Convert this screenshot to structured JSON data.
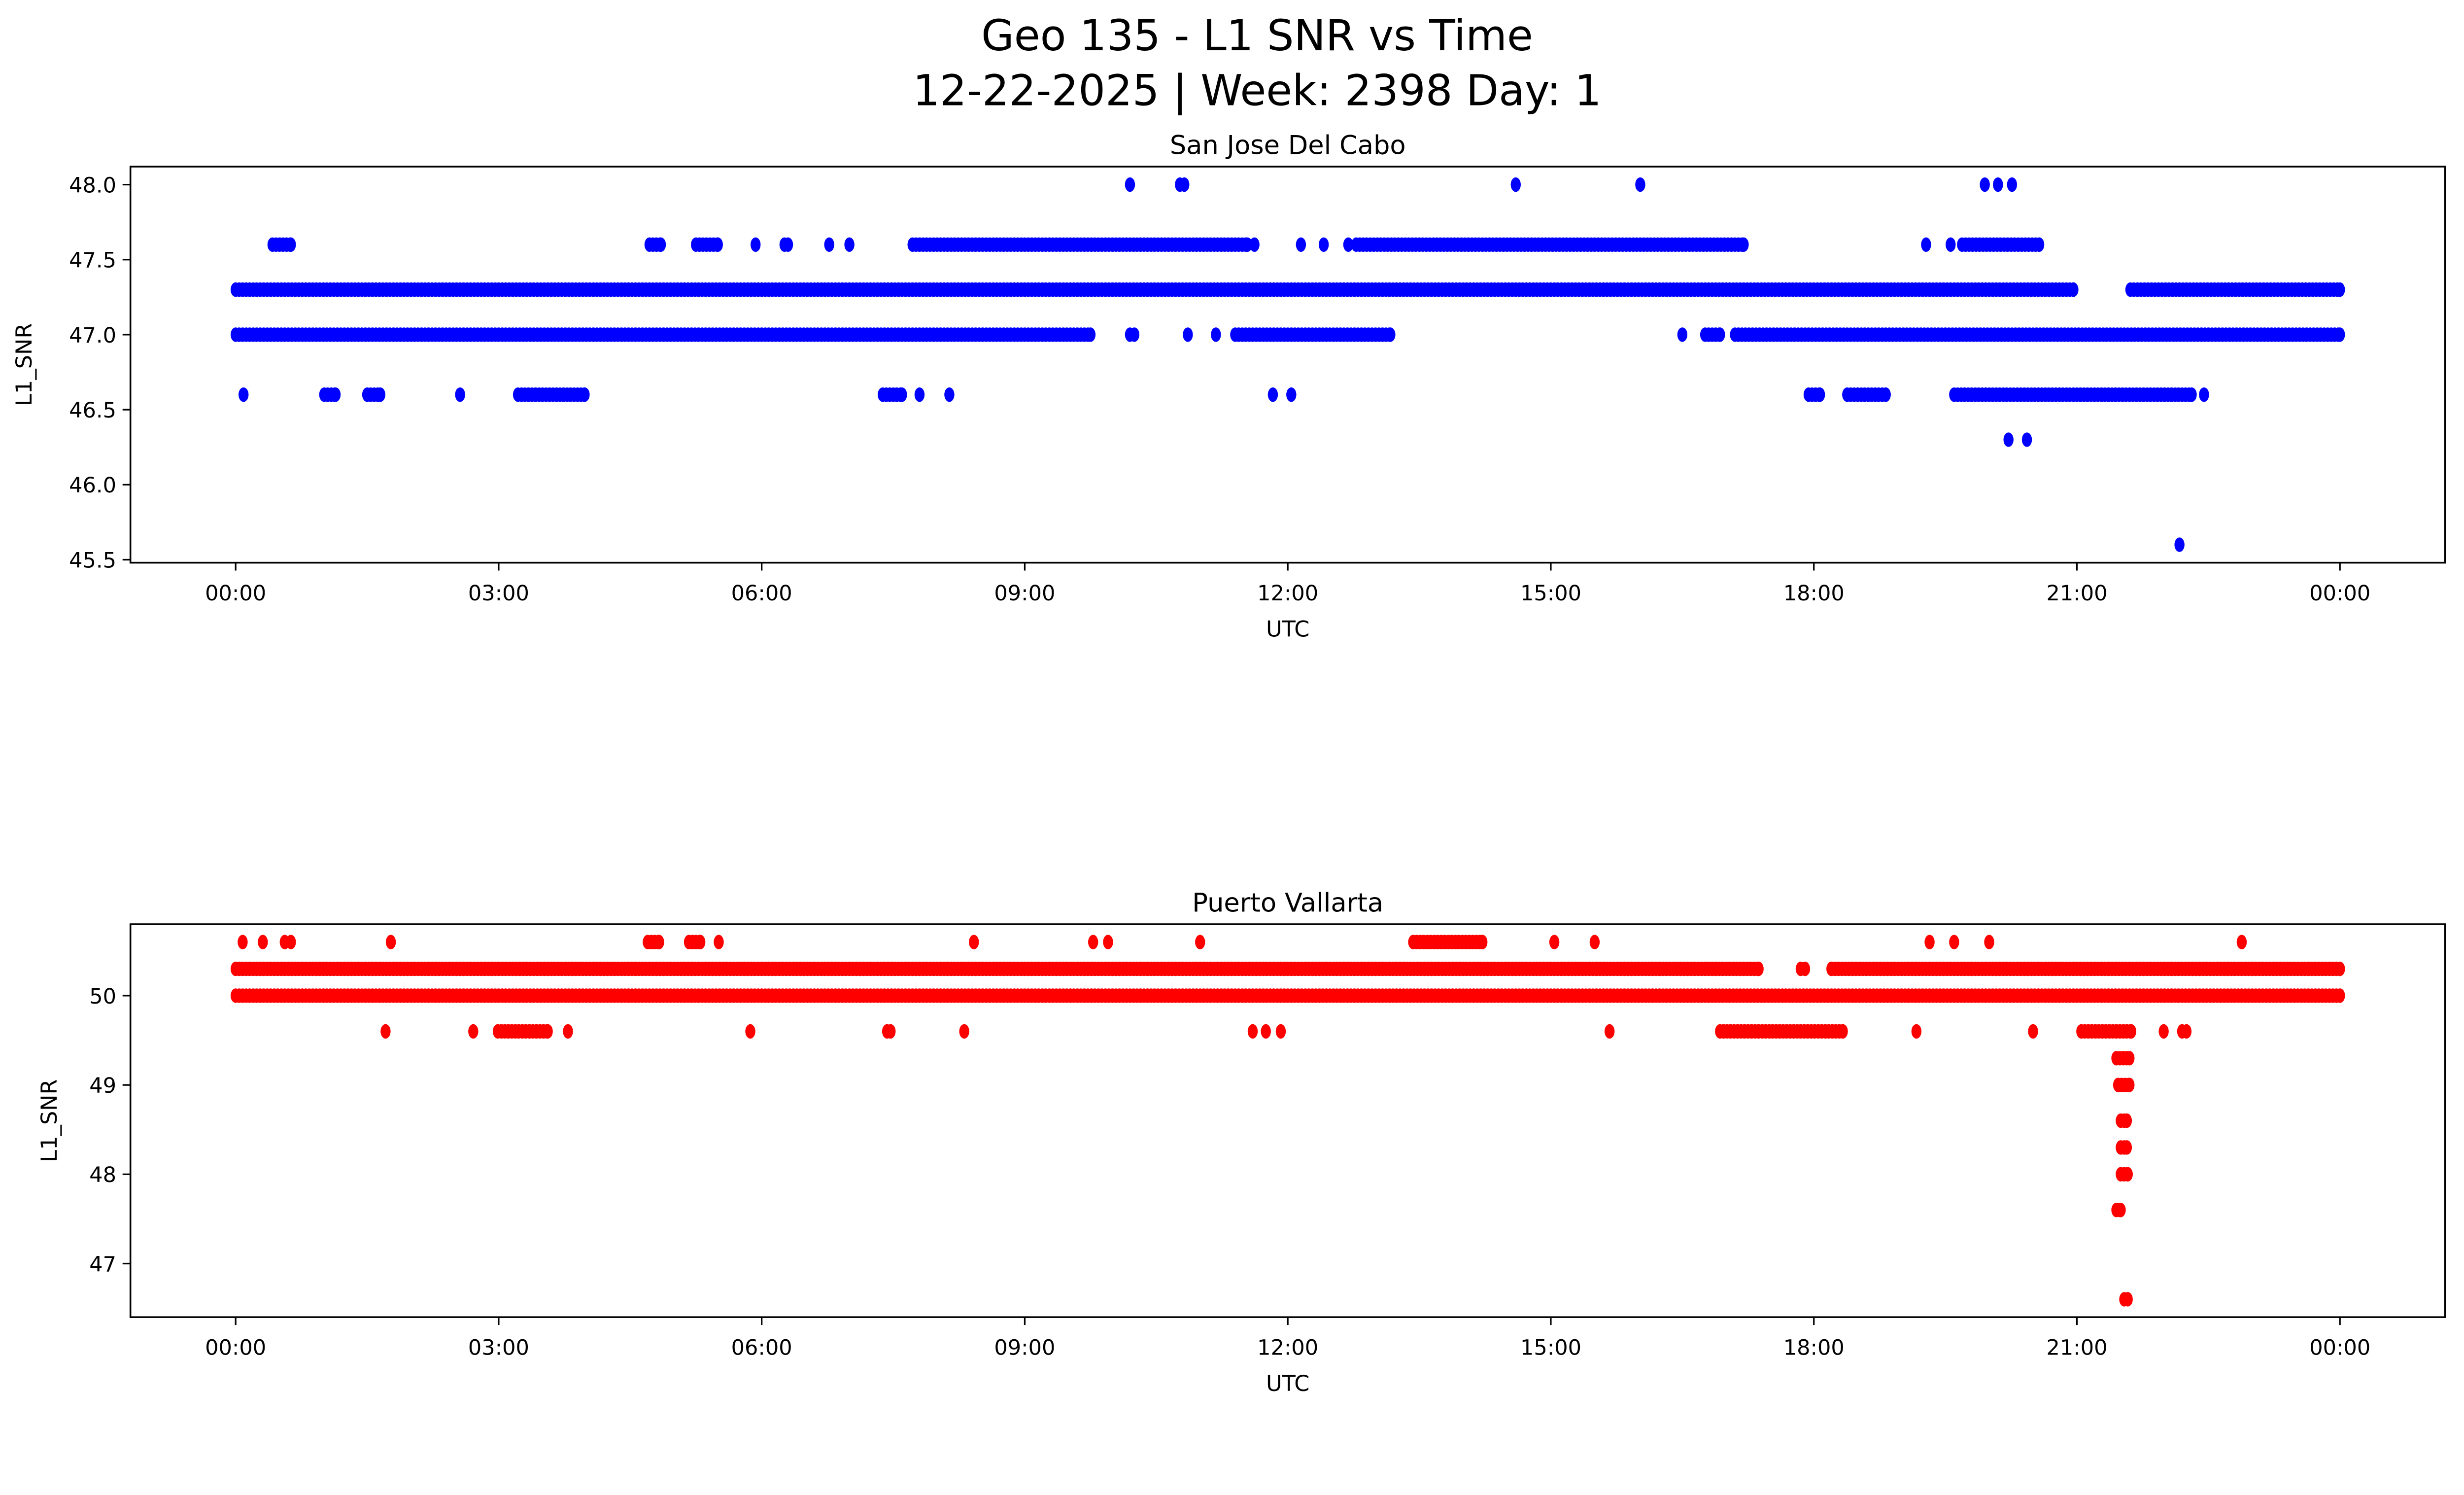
{
  "figure": {
    "title_line1": "Geo 135 - L1 SNR vs Time",
    "title_line2": "12-22-2025 | Week: 2398 Day: 1"
  },
  "chart_data": [
    {
      "type": "scatter",
      "title": "San Jose Del Cabo",
      "xlabel": "UTC",
      "ylabel": "L1_SNR",
      "color": "#0000ff",
      "xlim": [
        -1.2,
        25.2
      ],
      "ylim": [
        45.48,
        48.12
      ],
      "xtick_values": [
        0,
        3,
        6,
        9,
        12,
        15,
        18,
        21,
        24
      ],
      "xtick_labels": [
        "00:00",
        "03:00",
        "06:00",
        "09:00",
        "12:00",
        "15:00",
        "18:00",
        "21:00",
        "00:00"
      ],
      "ytick_values": [
        45.5,
        46.0,
        46.5,
        47.0,
        47.5,
        48.0
      ],
      "ytick_labels": [
        "45.5",
        "46.0",
        "46.5",
        "47.0",
        "47.5",
        "48.0"
      ],
      "x_units": "hours UTC",
      "series": [
        {
          "y": 48.0,
          "runs": [],
          "points": [
            10.2,
            10.77,
            10.82,
            14.6,
            16.02,
            19.95,
            20.1,
            20.26
          ]
        },
        {
          "y": 47.6,
          "runs": [
            [
              0.42,
              0.63
            ],
            [
              4.72,
              4.85
            ],
            [
              5.25,
              5.5
            ],
            [
              7.72,
              11.54
            ],
            [
              12.78,
              17.2
            ],
            [
              19.69,
              20.57
            ]
          ],
          "points": [
            5.93,
            6.26,
            6.3,
            6.77,
            7.0,
            11.62,
            12.15,
            12.41,
            12.69,
            19.28,
            19.56
          ]
        },
        {
          "y": 47.3,
          "runs": [
            [
              0.0,
              20.96
            ],
            [
              21.61,
              24.0
            ]
          ],
          "points": []
        },
        {
          "y": 47.0,
          "runs": [
            [
              0.0,
              9.75
            ],
            [
              11.4,
              13.17
            ],
            [
              16.76,
              16.93
            ],
            [
              17.1,
              24.0
            ]
          ],
          "points": [
            10.2,
            10.25,
            10.86,
            11.18,
            16.5
          ]
        },
        {
          "y": 46.6,
          "runs": [
            [
              1.01,
              1.14
            ],
            [
              1.5,
              1.65
            ],
            [
              3.22,
              3.98
            ],
            [
              7.38,
              7.6
            ],
            [
              17.94,
              18.07
            ],
            [
              18.38,
              18.82
            ],
            [
              19.6,
              22.31
            ]
          ],
          "points": [
            0.09,
            2.56,
            7.8,
            8.14,
            11.83,
            12.04,
            22.45
          ]
        },
        {
          "y": 46.3,
          "runs": [],
          "points": [
            20.22,
            20.43
          ]
        },
        {
          "y": 45.6,
          "runs": [],
          "points": [
            22.17
          ]
        }
      ]
    },
    {
      "type": "scatter",
      "title": "Puerto Vallarta",
      "xlabel": "UTC",
      "ylabel": "L1_SNR",
      "color": "#ff0000",
      "xlim": [
        -1.2,
        25.2
      ],
      "ylim": [
        46.4,
        50.8
      ],
      "xtick_values": [
        0,
        3,
        6,
        9,
        12,
        15,
        18,
        21,
        24
      ],
      "xtick_labels": [
        "00:00",
        "03:00",
        "06:00",
        "09:00",
        "12:00",
        "15:00",
        "18:00",
        "21:00",
        "00:00"
      ],
      "ytick_values": [
        47,
        48,
        49,
        50
      ],
      "ytick_labels": [
        "47",
        "48",
        "49",
        "50"
      ],
      "x_units": "hours UTC",
      "series": [
        {
          "y": 50.6,
          "runs": [
            [
              4.7,
              4.83
            ],
            [
              5.17,
              5.3
            ],
            [
              13.43,
              14.22
            ]
          ],
          "points": [
            0.08,
            0.31,
            0.56,
            0.63,
            1.77,
            5.51,
            8.42,
            9.78,
            9.95,
            11.0,
            15.04,
            15.5,
            19.32,
            19.6,
            20.0,
            22.88
          ]
        },
        {
          "y": 50.3,
          "runs": [
            [
              0.0,
              17.37
            ],
            [
              18.2,
              24.0
            ]
          ],
          "points": [
            17.85,
            17.9
          ]
        },
        {
          "y": 50.0,
          "runs": [
            [
              0.0,
              24.0
            ]
          ],
          "points": []
        },
        {
          "y": 49.6,
          "runs": [
            [
              2.99,
              3.56
            ],
            [
              16.93,
              18.33
            ],
            [
              21.05,
              21.62
            ]
          ],
          "points": [
            1.71,
            2.71,
            3.79,
            5.87,
            7.43,
            7.47,
            8.31,
            11.6,
            11.75,
            11.92,
            15.67,
            19.17,
            20.5,
            21.99,
            22.2,
            22.25
          ]
        },
        {
          "y": 49.3,
          "runs": [
            [
              21.45,
              21.6
            ]
          ],
          "points": []
        },
        {
          "y": 49.0,
          "runs": [
            [
              21.47,
              21.6
            ]
          ],
          "points": []
        },
        {
          "y": 48.6,
          "runs": [
            [
              21.5,
              21.57
            ]
          ],
          "points": []
        },
        {
          "y": 48.3,
          "runs": [
            [
              21.5,
              21.57
            ]
          ],
          "points": []
        },
        {
          "y": 48.0,
          "runs": [
            [
              21.5,
              21.58
            ]
          ],
          "points": []
        },
        {
          "y": 47.6,
          "runs": [
            [
              21.45,
              21.5
            ]
          ],
          "points": []
        },
        {
          "y": 46.6,
          "runs": [],
          "points": [
            21.54,
            21.58
          ]
        }
      ]
    }
  ]
}
